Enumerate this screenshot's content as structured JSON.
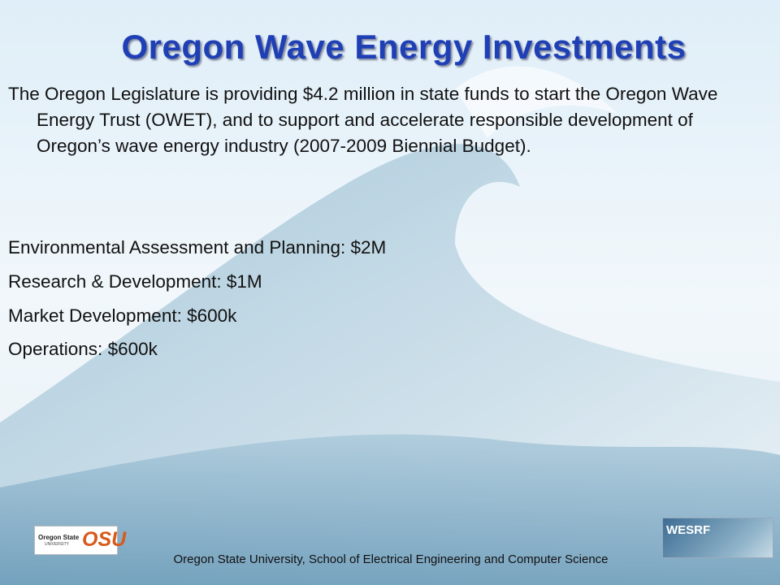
{
  "slide": {
    "title": "Oregon Wave Energy Investments",
    "paragraph": "The Oregon Legislature is providing $4.2 million in state funds to start the Oregon Wave Energy Trust (OWET), and to support and accelerate responsible development of Oregon’s wave energy industry (2007-2009 Biennial Budget).",
    "items": [
      "Environmental Assessment and Planning:  $2M",
      "Research  & Development:  $1M",
      "Market Development:  $600k",
      "Operations:  $600k"
    ],
    "footer": "Oregon State University, School of Electrical Engineering and Computer Science",
    "logos": {
      "osu_name": "Oregon State",
      "osu_sub": "UNIVERSITY",
      "osu_mark": "OSU",
      "wesrf": "WESRF"
    }
  }
}
